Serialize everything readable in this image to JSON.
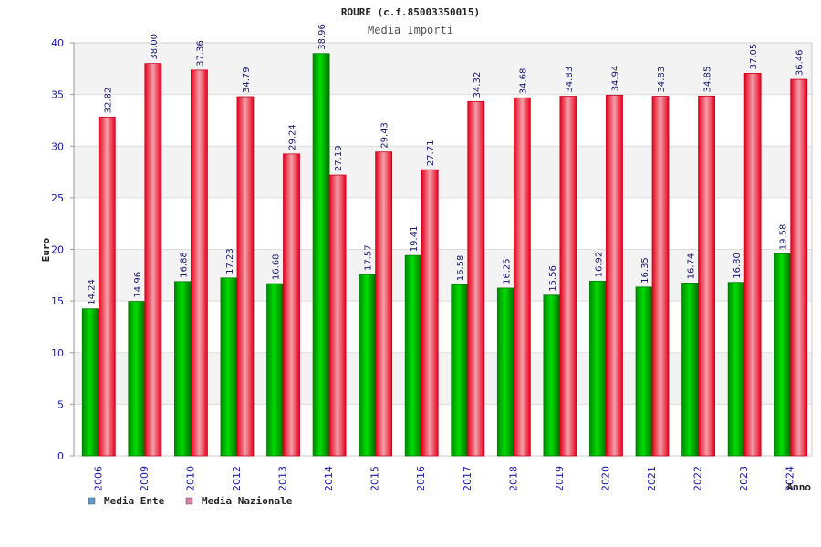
{
  "chart_data": {
    "type": "bar",
    "title": "ROURE (c.f.85003350015)",
    "subtitle": "Media Importi",
    "ylabel": "Euro",
    "xlabel": "Anno",
    "ylim": [
      0,
      40
    ],
    "yticks": [
      0,
      5,
      10,
      15,
      20,
      25,
      30,
      35,
      40
    ],
    "grid": true,
    "legend_position": "bottom-left",
    "categories": [
      "2006",
      "2009",
      "2010",
      "2012",
      "2013",
      "2014",
      "2015",
      "2016",
      "2017",
      "2018",
      "2019",
      "2020",
      "2021",
      "2022",
      "2023",
      "2024"
    ],
    "series": [
      {
        "name": "Media Ente",
        "color": "#00b800",
        "legend_color": "#5b9bd5",
        "values": [
          14.24,
          14.96,
          16.88,
          17.23,
          16.68,
          38.96,
          17.57,
          19.41,
          16.58,
          16.25,
          15.56,
          16.92,
          16.35,
          16.74,
          16.8,
          19.58
        ],
        "labels": [
          "14.24",
          "14.96",
          "16.88",
          "17.23",
          "16.68",
          "38.96",
          "17.57",
          "19.41",
          "16.58",
          "16.25",
          "15.56",
          "16.92",
          "16.35",
          "16.74",
          "16.80",
          "19.58"
        ]
      },
      {
        "name": "Media Nazionale",
        "color": "#e8001c",
        "legend_color": "#d77fa1",
        "values": [
          32.82,
          38.0,
          37.36,
          34.79,
          29.24,
          27.19,
          29.43,
          27.71,
          34.32,
          34.68,
          34.83,
          34.94,
          34.83,
          34.85,
          37.05,
          36.46
        ],
        "labels": [
          "32.82",
          "38.00",
          "37.36",
          "34.79",
          "29.24",
          "27.19",
          "29.43",
          "27.71",
          "34.32",
          "34.68",
          "34.83",
          "34.94",
          "34.83",
          "34.85",
          "37.05",
          "36.46"
        ]
      }
    ]
  }
}
